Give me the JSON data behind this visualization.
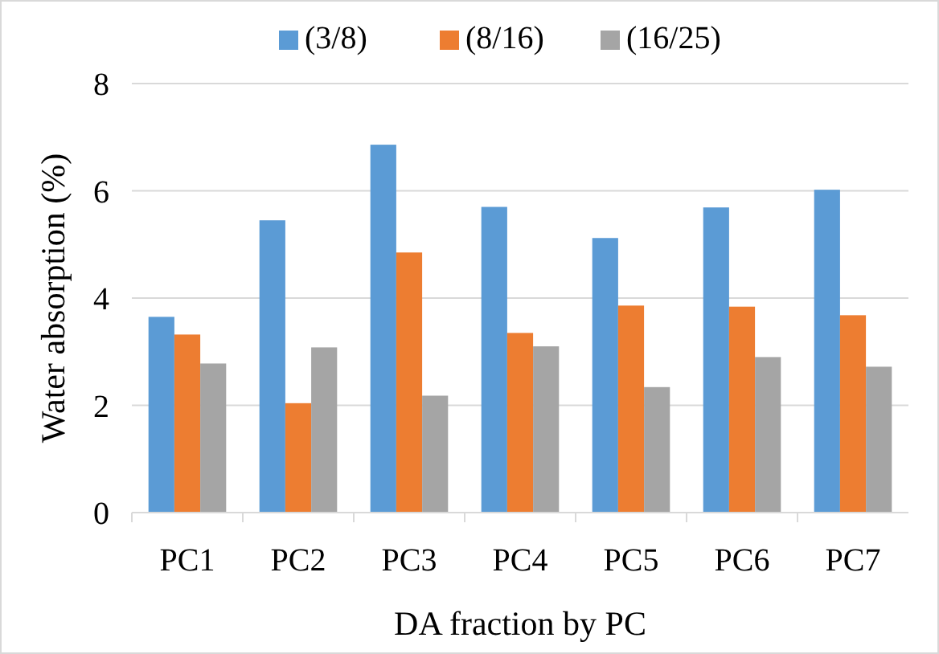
{
  "chart_data": {
    "type": "bar",
    "xlabel": "DA fraction by PC",
    "ylabel": "Water absorption (%)",
    "categories": [
      "PC1",
      "PC2",
      "PC3",
      "PC4",
      "PC5",
      "PC6",
      "PC7"
    ],
    "series": [
      {
        "name": "(3/8)",
        "color": "#5b9bd5",
        "values": [
          3.65,
          5.45,
          6.86,
          5.7,
          5.12,
          5.69,
          6.02
        ]
      },
      {
        "name": "(8/16)",
        "color": "#ed7d31",
        "values": [
          3.32,
          2.04,
          4.85,
          3.35,
          3.86,
          3.84,
          3.68
        ]
      },
      {
        "name": "(16/25)",
        "color": "#a5a5a5",
        "values": [
          2.78,
          3.08,
          2.18,
          3.1,
          2.34,
          2.9,
          2.72
        ]
      }
    ],
    "ylim": [
      0,
      8
    ],
    "yticks": [
      0,
      2,
      4,
      6,
      8
    ],
    "grid": "y",
    "legend": "top"
  }
}
